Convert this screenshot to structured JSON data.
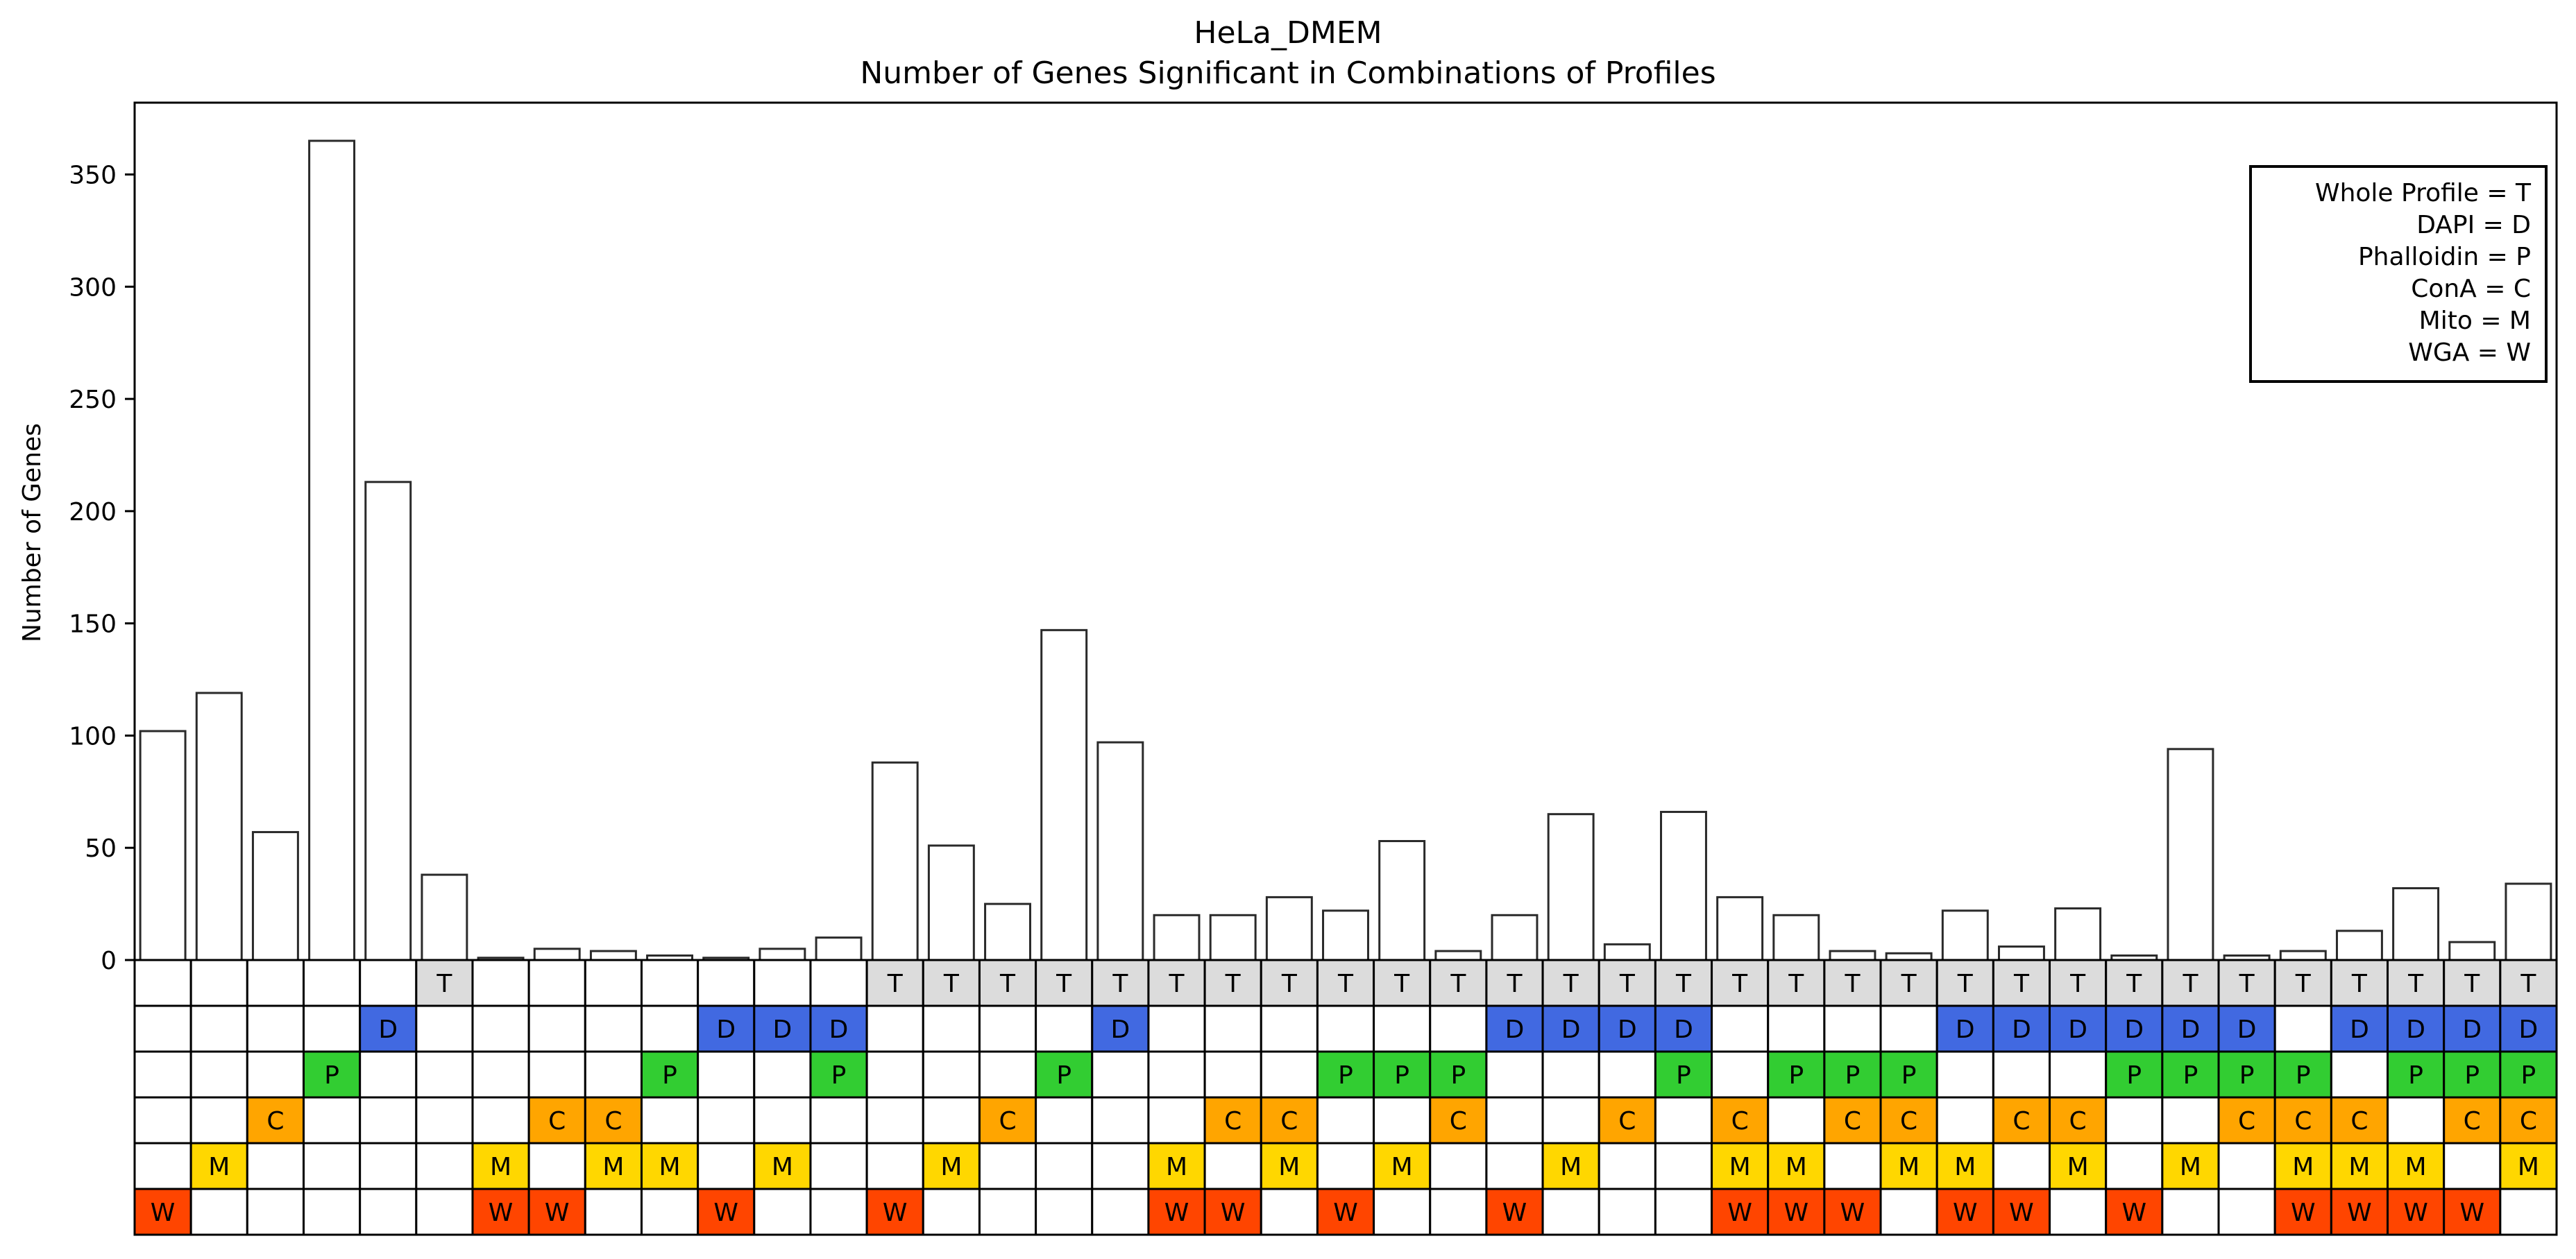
{
  "chart_data": {
    "type": "bar",
    "title": "HeLa_DMEM",
    "subtitle": "Number of Genes Significant in Combinations of Profiles",
    "ylabel": "Number of Genes",
    "xlabel": "",
    "ylim": [
      0,
      382
    ],
    "yticks": [
      0,
      50,
      100,
      150,
      200,
      250,
      300,
      350
    ],
    "grid": false,
    "legend_position": "top-right",
    "legend": [
      "Whole Profile = T",
      "DAPI = D",
      "Phalloidin = P",
      "ConA = C",
      "Mito = M",
      "WGA = W"
    ],
    "row_letters": [
      "T",
      "D",
      "P",
      "C",
      "M",
      "W"
    ],
    "row_colors": {
      "T": "#dcdcdc",
      "D": "#4169e1",
      "P": "#32cd32",
      "C": "#ffa500",
      "M": "#ffd700",
      "W": "#ff4500"
    },
    "values": [
      102,
      119,
      57,
      365,
      213,
      38,
      1,
      5,
      4,
      2,
      1,
      5,
      10,
      88,
      51,
      25,
      147,
      97,
      20,
      20,
      28,
      22,
      53,
      4,
      20,
      65,
      7,
      66,
      28,
      20,
      4,
      3,
      22,
      6,
      23,
      2,
      94,
      2,
      4,
      13,
      32,
      8,
      34
    ],
    "combinations": [
      "W",
      "M",
      "C",
      "P",
      "D",
      "T",
      "MW",
      "CW",
      "CM",
      "PM",
      "DW",
      "DM",
      "DP",
      "TW",
      "TM",
      "TC",
      "TP",
      "TD",
      "TMW",
      "TCW",
      "TCM",
      "TPW",
      "TPM",
      "TPC",
      "TDW",
      "TDM",
      "TDC",
      "TDP",
      "TCMW",
      "TPMW",
      "TPCW",
      "TPCM",
      "TDMW",
      "TDCW",
      "TDCM",
      "TDPW",
      "TDPM",
      "TDPC",
      "TPCMW",
      "TDCMW",
      "TDPMW",
      "TDPCW",
      "TDPCM"
    ]
  }
}
